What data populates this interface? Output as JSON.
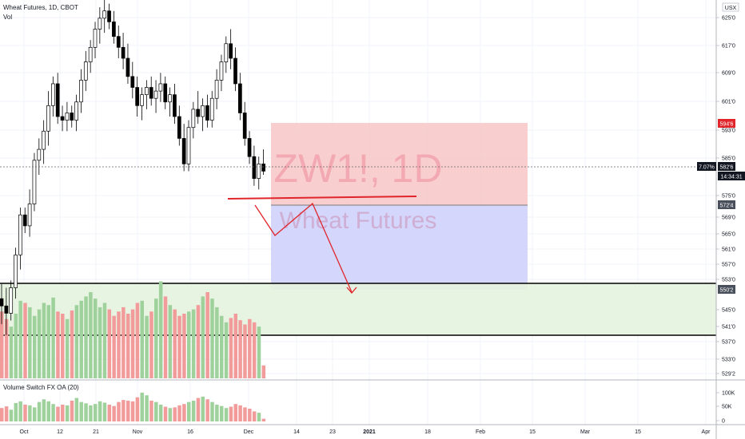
{
  "header": {
    "symbol_line": "Wheat Futures, 1D, CBOT",
    "volume_label": "Vol",
    "indicator_label": "Volume Switch FX OA (20)",
    "currency": "USX"
  },
  "watermark": {
    "ticker": "ZW1!, 1D",
    "name": "Wheat Futures"
  },
  "price_axis": {
    "ticks": [
      "625'0",
      "617'0",
      "609'0",
      "601'0",
      "593'0",
      "585'0",
      "575'0",
      "569'0",
      "565'0",
      "561'0",
      "557'0",
      "553'0",
      "545'0",
      "541'0",
      "537'0",
      "533'0",
      "529'2"
    ]
  },
  "price_badges": {
    "target": "594'6",
    "current_change": "7.07%",
    "current_price": "582'6",
    "countdown": "14:34:31",
    "entry": "572'4",
    "stop": "550'2"
  },
  "indicator_axis": {
    "ticks": [
      "100K",
      "50K",
      "0"
    ]
  },
  "time_axis": {
    "ticks": [
      "Oct",
      "12",
      "21",
      "Nov",
      "16",
      "Dec",
      "14",
      "23",
      "2021",
      "18",
      "Feb",
      "15",
      "Mar",
      "15",
      "Apr"
    ]
  },
  "colors": {
    "up": "#ffffff",
    "down": "#000000",
    "vol_up": "#9ed19c",
    "vol_down": "#f29b9b",
    "target_zone": "#f7c6c7",
    "stop_zone": "#cfd2fb",
    "support_zone": "#e6f3df",
    "drawing": "#e0252b"
  },
  "chart_data": {
    "type": "candlestick",
    "series": [
      {
        "name": "Wheat Futures",
        "candles": [
          [
            548,
            552,
            541,
            546
          ],
          [
            546,
            551,
            538,
            544
          ],
          [
            544,
            553,
            542,
            551
          ],
          [
            551,
            562,
            548,
            560
          ],
          [
            560,
            573,
            556,
            571
          ],
          [
            571,
            573,
            566,
            568
          ],
          [
            568,
            578,
            565,
            574
          ],
          [
            574,
            588,
            572,
            586
          ],
          [
            586,
            592,
            582,
            589
          ],
          [
            589,
            597,
            585,
            594
          ],
          [
            594,
            605,
            590,
            601
          ],
          [
            601,
            609,
            598,
            607
          ],
          [
            607,
            610,
            596,
            598
          ],
          [
            598,
            601,
            594,
            597
          ],
          [
            597,
            602,
            594,
            599
          ],
          [
            599,
            601,
            595,
            597
          ],
          [
            597,
            604,
            594,
            602
          ],
          [
            602,
            611,
            599,
            608
          ],
          [
            608,
            616,
            605,
            613
          ],
          [
            613,
            619,
            610,
            617
          ],
          [
            617,
            624,
            614,
            622
          ],
          [
            622,
            628,
            618,
            625
          ],
          [
            625,
            630,
            621,
            627
          ],
          [
            627,
            629,
            622,
            624
          ],
          [
            624,
            627,
            618,
            620
          ],
          [
            620,
            623,
            614,
            617
          ],
          [
            617,
            621,
            611,
            614
          ],
          [
            614,
            618,
            607,
            609
          ],
          [
            609,
            613,
            603,
            606
          ],
          [
            606,
            609,
            598,
            601
          ],
          [
            601,
            606,
            597,
            604
          ],
          [
            604,
            608,
            600,
            606
          ],
          [
            606,
            609,
            601,
            603
          ],
          [
            603,
            608,
            599,
            605
          ],
          [
            605,
            610,
            602,
            607
          ],
          [
            607,
            609,
            600,
            602
          ],
          [
            602,
            606,
            598,
            604
          ],
          [
            604,
            607,
            596,
            598
          ],
          [
            598,
            601,
            590,
            592
          ],
          [
            592,
            596,
            583,
            585
          ],
          [
            585,
            597,
            583,
            595
          ],
          [
            595,
            602,
            592,
            600
          ],
          [
            600,
            605,
            596,
            598
          ],
          [
            598,
            603,
            594,
            601
          ],
          [
            601,
            604,
            595,
            597
          ],
          [
            597,
            605,
            595,
            603
          ],
          [
            603,
            611,
            600,
            608
          ],
          [
            608,
            615,
            605,
            613
          ],
          [
            613,
            620,
            610,
            618
          ],
          [
            618,
            622,
            611,
            614
          ],
          [
            614,
            617,
            605,
            607
          ],
          [
            607,
            610,
            597,
            599
          ],
          [
            599,
            602,
            590,
            592
          ],
          [
            592,
            594,
            585,
            587
          ],
          [
            587,
            590,
            579,
            581
          ],
          [
            581,
            587,
            578,
            585
          ],
          [
            585,
            589,
            582,
            583
          ]
        ]
      }
    ],
    "volume": [
      62,
      55,
      48,
      60,
      72,
      70,
      66,
      58,
      64,
      70,
      68,
      75,
      62,
      60,
      55,
      63,
      68,
      72,
      76,
      80,
      74,
      66,
      70,
      64,
      58,
      62,
      66,
      60,
      64,
      70,
      72,
      58,
      62,
      74,
      90,
      76,
      68,
      64,
      58,
      60,
      62,
      64,
      68,
      76,
      80,
      74,
      66,
      58,
      52,
      56,
      60,
      54,
      50,
      55,
      52,
      48,
      12
    ],
    "indicator": [
      40,
      45,
      35,
      55,
      60,
      50,
      48,
      42,
      58,
      66,
      60,
      52,
      44,
      50,
      48,
      62,
      70,
      58,
      54,
      48,
      52,
      60,
      56,
      50,
      46,
      58,
      64,
      62,
      60,
      72,
      86,
      78,
      62,
      58,
      50,
      44,
      40,
      42,
      48,
      52,
      58,
      62,
      70,
      74,
      66,
      58,
      50,
      46,
      40,
      44,
      52,
      48,
      42,
      38,
      30,
      26,
      8
    ],
    "ylim": [
      527,
      630
    ]
  }
}
